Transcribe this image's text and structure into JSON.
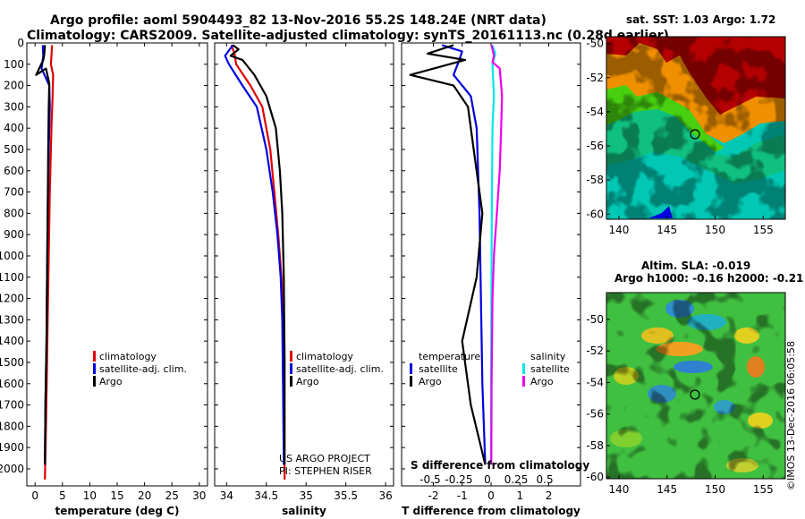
{
  "header": {
    "line1": "Argo profile: aoml 5904493_82 13-Nov-2016 55.2S 148.24E (NRT data)",
    "line2": "Climatology: CARS2009. Satellite-adjusted climatology: synTS_20161113.nc (0.28d earlier)"
  },
  "colors": {
    "climatology": "#e00000",
    "satellite": "#0000dd",
    "argo": "#000000",
    "sat_salinity": "#00e8e8",
    "argo_salinity": "#ee00ee"
  },
  "chart_data": [
    {
      "id": "temperature",
      "type": "line",
      "xlabel": "temperature (deg C)",
      "ylabel": "",
      "xlim": [
        -1.5,
        31.5
      ],
      "ylim": [
        2080,
        0
      ],
      "xticks": [
        0,
        5,
        10,
        15,
        20,
        25,
        30
      ],
      "yticks": [
        0,
        100,
        200,
        300,
        400,
        500,
        600,
        700,
        800,
        900,
        1000,
        1100,
        1200,
        1300,
        1400,
        1500,
        1600,
        1700,
        1800,
        1900,
        2000
      ],
      "legend": {
        "placement": "bottom-right",
        "entries": [
          "climatology",
          "satellite-adj. clim.",
          "Argo"
        ]
      },
      "series": [
        {
          "name": "climatology",
          "color": "#e00000",
          "points": [
            [
              3.1,
              10
            ],
            [
              3.0,
              60
            ],
            [
              2.9,
              100
            ],
            [
              3.3,
              150
            ],
            [
              3.2,
              250
            ],
            [
              3.0,
              400
            ],
            [
              2.7,
              700
            ],
            [
              2.5,
              1000
            ],
            [
              2.3,
              1300
            ],
            [
              2.2,
              1500
            ],
            [
              2.0,
              1800
            ],
            [
              1.8,
              2050
            ]
          ]
        },
        {
          "name": "satellite-adj. clim.",
          "color": "#0000dd",
          "points": [
            [
              1.4,
              10
            ],
            [
              1.5,
              60
            ],
            [
              1.2,
              120
            ],
            [
              2.6,
              200
            ],
            [
              2.7,
              300
            ],
            [
              2.5,
              500
            ],
            [
              2.3,
              800
            ],
            [
              2.2,
              1100
            ],
            [
              2.1,
              1400
            ],
            [
              1.9,
              1700
            ],
            [
              1.8,
              1980
            ]
          ]
        },
        {
          "name": "Argo",
          "color": "#000000",
          "points": [
            [
              1.8,
              10
            ],
            [
              1.7,
              50
            ],
            [
              1.5,
              80
            ],
            [
              0.2,
              150
            ],
            [
              2.0,
              120
            ],
            [
              2.6,
              190
            ],
            [
              2.5,
              300
            ],
            [
              2.4,
              500
            ],
            [
              2.3,
              800
            ],
            [
              2.2,
              1100
            ],
            [
              2.1,
              1400
            ],
            [
              1.9,
              1700
            ],
            [
              1.8,
              1980
            ]
          ]
        }
      ]
    },
    {
      "id": "salinity",
      "type": "line",
      "xlabel": "salinity",
      "ylabel": "",
      "xlim": [
        33.85,
        36.1
      ],
      "ylim": [
        2080,
        0
      ],
      "xticks": [
        34,
        34.5,
        35,
        35.5,
        36
      ],
      "credit": [
        "US ARGO PROJECT",
        "PI: STEPHEN RISER"
      ],
      "legend": {
        "placement": "bottom-right",
        "entries": [
          "climatology",
          "satellite-adj. clim.",
          "Argo"
        ]
      },
      "series": [
        {
          "name": "climatology",
          "color": "#e00000",
          "points": [
            [
              34.06,
              10
            ],
            [
              34.1,
              50
            ],
            [
              34.12,
              100
            ],
            [
              34.3,
              200
            ],
            [
              34.45,
              300
            ],
            [
              34.55,
              500
            ],
            [
              34.6,
              700
            ],
            [
              34.65,
              900
            ],
            [
              34.69,
              1100
            ],
            [
              34.71,
              1300
            ],
            [
              34.72,
              1600
            ],
            [
              34.73,
              2050
            ]
          ]
        },
        {
          "name": "satellite-adj. clim.",
          "color": "#0000dd",
          "points": [
            [
              34.08,
              10
            ],
            [
              33.98,
              60
            ],
            [
              34.03,
              100
            ],
            [
              34.2,
              200
            ],
            [
              34.38,
              300
            ],
            [
              34.5,
              500
            ],
            [
              34.58,
              700
            ],
            [
              34.64,
              900
            ],
            [
              34.68,
              1100
            ],
            [
              34.7,
              1300
            ],
            [
              34.71,
              1600
            ],
            [
              34.72,
              1980
            ]
          ]
        },
        {
          "name": "Argo",
          "color": "#000000",
          "points": [
            [
              34.08,
              10
            ],
            [
              34.15,
              30
            ],
            [
              34.05,
              60
            ],
            [
              34.2,
              80
            ],
            [
              34.35,
              150
            ],
            [
              34.5,
              250
            ],
            [
              34.62,
              400
            ],
            [
              34.67,
              600
            ],
            [
              34.7,
              800
            ],
            [
              34.72,
              1100
            ],
            [
              34.73,
              1500
            ],
            [
              34.73,
              1980
            ]
          ]
        }
      ]
    },
    {
      "id": "differences",
      "type": "line",
      "xlabel": "T difference from climatology",
      "xlabel2": "S difference from climatology",
      "xlim": [
        -3.1,
        3.1
      ],
      "ylim": [
        2080,
        0
      ],
      "xticks": [
        -2,
        -1,
        0,
        1,
        2
      ],
      "xticks_labels": [
        "-2",
        "-1",
        "0",
        "1",
        "2"
      ],
      "s_ticks": [
        -0.5,
        -0.25,
        0,
        0.25,
        0.5
      ],
      "s_ticks_labels": [
        "-0.5",
        "-0.25",
        "0",
        "0.25",
        "0.5"
      ],
      "legend": {
        "placement": "bottom",
        "left_title": "temperature",
        "left_entries": [
          "satellite",
          "Argo"
        ],
        "right_title": "salinity",
        "right_entries": [
          "satellite",
          "Argo"
        ]
      },
      "series": [
        {
          "name": "temperature satellite",
          "color": "#0000dd",
          "points": [
            [
              -1.7,
              10
            ],
            [
              -1.0,
              40
            ],
            [
              -1.1,
              80
            ],
            [
              -1.3,
              150
            ],
            [
              -0.7,
              250
            ],
            [
              -0.5,
              400
            ],
            [
              -0.4,
              800
            ],
            [
              -0.35,
              1200
            ],
            [
              -0.3,
              1600
            ],
            [
              -0.2,
              1980
            ]
          ]
        },
        {
          "name": "temperature Argo",
          "color": "#000000",
          "points": [
            [
              -1.3,
              10
            ],
            [
              -2.2,
              50
            ],
            [
              -0.9,
              80
            ],
            [
              -2.8,
              150
            ],
            [
              -1.3,
              200
            ],
            [
              -0.8,
              300
            ],
            [
              -0.6,
              500
            ],
            [
              -0.3,
              800
            ],
            [
              -0.5,
              1100
            ],
            [
              -1.0,
              1400
            ],
            [
              -0.7,
              1700
            ],
            [
              -0.2,
              1980
            ]
          ]
        },
        {
          "name": "salinity satellite",
          "color": "#00e8e8",
          "points": [
            [
              0.05,
              10
            ],
            [
              0.15,
              50
            ],
            [
              0.05,
              100
            ],
            [
              0.1,
              250
            ],
            [
              0.05,
              400
            ],
            [
              0.03,
              700
            ],
            [
              0.02,
              1000
            ],
            [
              0.01,
              1300
            ],
            [
              0.0,
              1600
            ],
            [
              0.0,
              1980
            ]
          ]
        },
        {
          "name": "salinity Argo",
          "color": "#ee00ee",
          "points": [
            [
              0.02,
              10
            ],
            [
              0.1,
              60
            ],
            [
              0.05,
              90
            ],
            [
              0.3,
              120
            ],
            [
              0.38,
              250
            ],
            [
              0.35,
              400
            ],
            [
              0.3,
              600
            ],
            [
              0.2,
              800
            ],
            [
              0.1,
              1000
            ],
            [
              0.05,
              1200
            ],
            [
              0.02,
              1600
            ],
            [
              0.01,
              1980
            ]
          ]
        }
      ]
    }
  ],
  "maps": [
    {
      "id": "sst-map",
      "title": "sat. SST: 1.03 Argo: 1.72",
      "xticks": [
        140,
        145,
        150,
        155
      ],
      "yticks": [
        -50,
        -52,
        -54,
        -56,
        -58,
        -60
      ],
      "marker": {
        "lon": 148.24,
        "lat": -55.2
      }
    },
    {
      "id": "sla-map",
      "title1": "Altim. SLA: -0.019",
      "title2": "Argo h1000: -0.16 h2000: -0.21",
      "xticks": [
        140,
        145,
        150,
        155
      ],
      "yticks": [
        -50,
        -52,
        -54,
        -56,
        -58,
        -60
      ],
      "marker": {
        "lon": 148.24,
        "lat": -55.2
      }
    }
  ],
  "stamp": "©IMOS 13-Dec-2016 06:05:58"
}
